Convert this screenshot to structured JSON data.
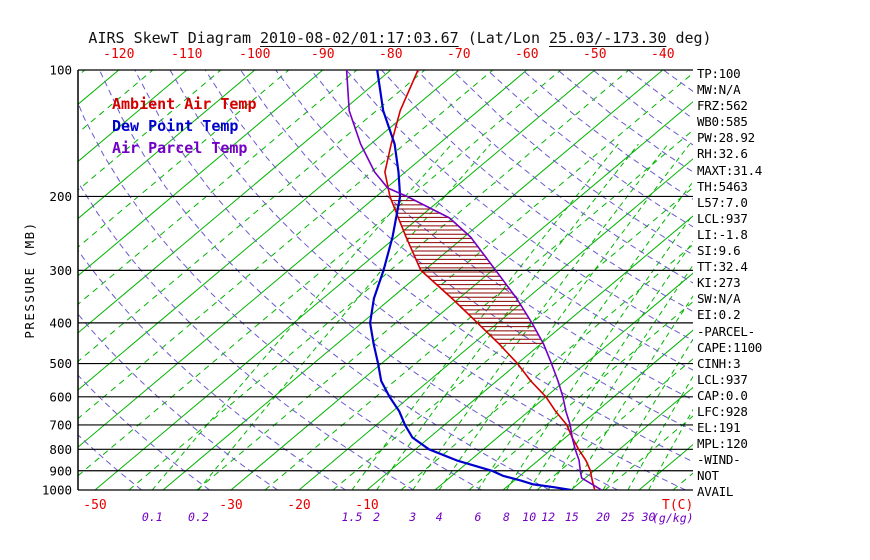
{
  "title": {
    "part1": "AIRS SkewT Diagram ",
    "datetime": "2010-08-02/01:17:03.67",
    "part2": " (Lat/Lon ",
    "latlon": "25.03/-173.30",
    "part3": " deg)"
  },
  "colors": {
    "isotherm_green": "#00b400",
    "mixing_ratio_green": "#00b400",
    "dry_adiabat_purple": "#6a5acd",
    "ambient_red": "#d40000",
    "dewpoint_blue": "#0000cd",
    "parcel_purple": "#7300c4",
    "axis_label_red": "#e60000",
    "mixing_label_purple": "#7300c4",
    "hatch_dark_red": "#8b0000",
    "black": "#000000"
  },
  "legend": [
    {
      "label": "Ambient Air Temp",
      "color": "#d40000"
    },
    {
      "label": "Dew Point Temp",
      "color": "#0000cd"
    },
    {
      "label": "Air Parcel Temp",
      "color": "#7300c4"
    }
  ],
  "axes": {
    "pressure_label": "PRESSURE (MB)",
    "pressure_ticks": [
      100,
      200,
      300,
      400,
      500,
      600,
      700,
      800,
      900,
      1000
    ],
    "top_temp_ticks": [
      -120,
      -110,
      -100,
      -90,
      -80,
      -70,
      -60,
      -50,
      -40
    ],
    "bottom_temp_ticks": [
      -50,
      -30,
      -20,
      -10
    ],
    "temp_unit": "T(C)",
    "mixing_unit": "(g/kg)",
    "mixing_ratios": [
      0.1,
      0.2,
      1.5,
      2,
      3,
      4,
      6,
      8,
      10,
      12,
      15,
      20,
      25,
      30
    ]
  },
  "stats": [
    "TP:100",
    "MW:N/A",
    "FRZ:562",
    "WB0:585",
    "PW:28.92",
    "RH:32.6",
    "MAXT:31.4",
    "TH:5463",
    "L57:7.0",
    "LCL:937",
    "LI:-1.8",
    "SI:9.6",
    "TT:32.4",
    "KI:273",
    "SW:N/A",
    "EI:0.2",
    "-PARCEL-",
    "CAPE:1100",
    "CINH:3",
    "LCL:937",
    "CAP:0.0",
    "LFC:928",
    "EL:191",
    "MPL:120",
    "-WIND-",
    "NOT",
    "AVAIL"
  ],
  "chart_data": {
    "type": "line",
    "subtype": "skew-t log-p sounding",
    "title": "AIRS SkewT Diagram 2010-08-02/01:17:03.67 (Lat/Lon 25.03/-173.30 deg)",
    "xlabel": "T(C)",
    "ylabel": "PRESSURE (MB)",
    "y_scale": "log",
    "ylim": [
      1000,
      100
    ],
    "x_skew_deg": 45,
    "temp_at_bottom_left_c": -52.5,
    "temp_at_bottom_right_c": 38,
    "isotherms_c": {
      "min": -160,
      "max": 45,
      "step": 5,
      "solid_every": 10
    },
    "dry_adiabats_k": {
      "min": 220,
      "max": 460,
      "step": 10
    },
    "mixing_ratio_lines_gkg": [
      0.1,
      0.2,
      1.5,
      2,
      3,
      4,
      6,
      8,
      10,
      12,
      15,
      20,
      25,
      30
    ],
    "series": [
      {
        "name": "Ambient Air Temp",
        "color": "#d40000",
        "pressure_mb": [
          1000,
          975,
          950,
          925,
          900,
          850,
          800,
          750,
          700,
          650,
          600,
          550,
          500,
          450,
          400,
          350,
          300,
          250,
          225,
          200,
          175,
          150,
          125,
          100
        ],
        "temp_c": [
          23.5,
          22.5,
          21.5,
          20.5,
          19.5,
          17,
          14,
          11,
          8,
          4,
          0,
          -5,
          -10,
          -16,
          -23,
          -31,
          -40.5,
          -48.5,
          -53,
          -58,
          -63,
          -67,
          -71.5,
          -76
        ]
      },
      {
        "name": "Dew Point Temp",
        "color": "#0000cd",
        "pressure_mb": [
          1000,
          985,
          970,
          950,
          925,
          900,
          850,
          800,
          750,
          700,
          650,
          600,
          550,
          500,
          450,
          400,
          350,
          300,
          250,
          200,
          175,
          150,
          125,
          100
        ],
        "temp_c": [
          20,
          17,
          13.5,
          11,
          7.5,
          5,
          -2,
          -8,
          -12.5,
          -15.8,
          -19,
          -23,
          -27,
          -30.5,
          -34.5,
          -38.8,
          -42.5,
          -46,
          -50.5,
          -56.5,
          -61,
          -66.5,
          -74,
          -82
        ]
      },
      {
        "name": "Air Parcel Temp",
        "color": "#7300c4",
        "pressure_mb": [
          1000,
          937,
          900,
          850,
          800,
          750,
          700,
          650,
          600,
          550,
          500,
          450,
          400,
          350,
          300,
          250,
          225,
          200,
          191,
          175,
          150,
          125,
          100
        ],
        "temp_c": [
          24.5,
          19.5,
          18,
          16,
          13.5,
          11,
          8.5,
          5.5,
          2.5,
          -1,
          -5,
          -9.5,
          -15,
          -21.5,
          -29.5,
          -39,
          -45.5,
          -55.5,
          -59.8,
          -64.5,
          -71.5,
          -79,
          -86.5
        ]
      }
    ],
    "cape_hatch": {
      "between": [
        "Ambient Air Temp",
        "Air Parcel Temp"
      ],
      "pressure_top_mb": 200,
      "pressure_bottom_mb": 452
    },
    "indices": {
      "TP": 100,
      "MW": "N/A",
      "FRZ": 562,
      "WB0": 585,
      "PW": 28.92,
      "RH": 32.6,
      "MAXT": 31.4,
      "TH": 5463,
      "L57": 7.0,
      "LCL": 937,
      "LI": -1.8,
      "SI": 9.6,
      "TT": 32.4,
      "KI": 273,
      "SW": "N/A",
      "EI": 0.2,
      "CAPE": 1100,
      "CINH": 3,
      "CAP": 0.0,
      "LFC": 928,
      "EL": 191,
      "MPL": 120,
      "WIND": "NOT AVAIL"
    }
  }
}
